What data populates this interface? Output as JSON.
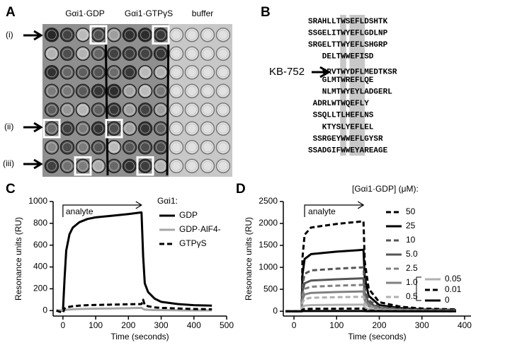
{
  "panel_a": {
    "label": "A",
    "column_labels": [
      "Gαi1·GDP",
      "Gαi1·GTPγS",
      "buffer"
    ],
    "row_labels": [
      "(i)",
      "(ii)",
      "(iii)"
    ]
  },
  "panel_b": {
    "label": "B",
    "marker_label": "KB-752",
    "sequences": [
      "SRAHLLTWSEFLDSHTK",
      "SSGELITWYEFLGDLNP",
      "SRGELTTWYEFLSHGRP",
      "DELTWWEFISD",
      "SRVTWYDFLMEDTKSR",
      "GLMTWREFLQE",
      "NLMTWYEYLADGERL",
      "ADRLWTWQEFLY",
      "SSQLLTLHEFLNS",
      "KTYSLYEFLEL",
      "SSRGEYWWEFLGYSR",
      "SSADGIFWWEYAREAGE"
    ]
  },
  "chart_data": [
    {
      "type": "line",
      "panel_label": "C",
      "xlabel": "Time (seconds)",
      "ylabel": "Resonance units (RU)",
      "annotation": "analyte",
      "legend_title": "Gαi1:",
      "xlim": [
        -30,
        500
      ],
      "xticks": [
        0,
        100,
        200,
        300,
        400,
        500
      ],
      "ylim": [
        -50,
        1000
      ],
      "yticks": [
        0,
        200,
        400,
        600,
        800,
        1000
      ],
      "x": [
        -20,
        0,
        5,
        10,
        20,
        30,
        50,
        75,
        100,
        150,
        200,
        240,
        245,
        250,
        260,
        280,
        300,
        350,
        400,
        455
      ],
      "series": [
        {
          "name": "GDP",
          "color": "#000000",
          "dash": false,
          "values": [
            0,
            0,
            300,
            550,
            700,
            760,
            810,
            840,
            855,
            870,
            885,
            900,
            500,
            250,
            170,
            110,
            80,
            60,
            50,
            45
          ]
        },
        {
          "name": "GDP·AlF4-",
          "color": "#a6a6a6",
          "dash": false,
          "values": [
            0,
            0,
            5,
            8,
            10,
            12,
            15,
            17,
            18,
            20,
            22,
            25,
            15,
            10,
            8,
            5,
            5,
            3,
            2,
            2
          ]
        },
        {
          "name": "GTPγS",
          "color": "#000000",
          "dash": true,
          "values": [
            0,
            -20,
            20,
            30,
            35,
            40,
            45,
            50,
            52,
            55,
            58,
            60,
            100,
            50,
            40,
            30,
            25,
            20,
            15,
            12
          ]
        }
      ]
    },
    {
      "type": "line",
      "panel_label": "D",
      "xlabel": "Time (seconds)",
      "ylabel": "Resonance units (RU)",
      "annotation": "analyte",
      "legend_title": "[Gαi1·GDP] (μM):",
      "xlim": [
        -25,
        415
      ],
      "xticks": [
        0,
        100,
        200,
        300,
        400
      ],
      "ylim": [
        -110,
        2500
      ],
      "yticks": [
        0,
        500,
        1000,
        1500,
        2000,
        2500
      ],
      "x": [
        -20,
        18,
        20,
        25,
        40,
        100,
        163,
        166,
        175,
        200,
        250,
        300,
        380
      ],
      "series": [
        {
          "name": "50",
          "color": "#000000",
          "dash": true,
          "values": [
            0,
            0,
            1230,
            1743,
            1907,
            1989,
            2050,
            1128,
            513,
            205,
            103,
            62,
            41
          ]
        },
        {
          "name": "25",
          "color": "#000000",
          "dash": false,
          "values": [
            0,
            0,
            840,
            1190,
            1302,
            1358,
            1400,
            770,
            350,
            140,
            70,
            42,
            28
          ]
        },
        {
          "name": "10",
          "color": "#555555",
          "dash": true,
          "values": [
            0,
            0,
            600,
            850,
            930,
            970,
            1000,
            550,
            250,
            100,
            50,
            30,
            20
          ]
        },
        {
          "name": "5.0",
          "color": "#555555",
          "dash": false,
          "values": [
            0,
            0,
            450,
            638,
            698,
            728,
            750,
            413,
            188,
            75,
            38,
            23,
            15
          ]
        },
        {
          "name": "2.5",
          "color": "#808080",
          "dash": true,
          "values": [
            0,
            0,
            360,
            510,
            558,
            582,
            600,
            330,
            150,
            60,
            30,
            18,
            12
          ]
        },
        {
          "name": "1.0",
          "color": "#808080",
          "dash": false,
          "values": [
            0,
            0,
            270,
            383,
            419,
            437,
            450,
            248,
            113,
            45,
            23,
            14,
            9
          ]
        },
        {
          "name": "0.5",
          "color": "#b0b0b0",
          "dash": true,
          "values": [
            0,
            0,
            198,
            281,
            307,
            320,
            330,
            182,
            83,
            33,
            17,
            10,
            7
          ]
        },
        {
          "name": "0.05",
          "color": "#b0b0b0",
          "dash": false,
          "values": [
            0,
            0,
            90,
            128,
            140,
            146,
            150,
            83,
            38,
            15,
            8,
            5,
            3
          ]
        },
        {
          "name": "0.01",
          "color": "#000000",
          "dash": true,
          "values": [
            0,
            0,
            36,
            51,
            56,
            58,
            60,
            33,
            15,
            6,
            3,
            2,
            1
          ]
        },
        {
          "name": "0",
          "color": "#000000",
          "dash": false,
          "values": [
            0,
            0,
            3,
            4,
            5,
            5,
            5,
            3,
            1,
            1,
            0,
            0,
            0
          ]
        }
      ]
    }
  ]
}
